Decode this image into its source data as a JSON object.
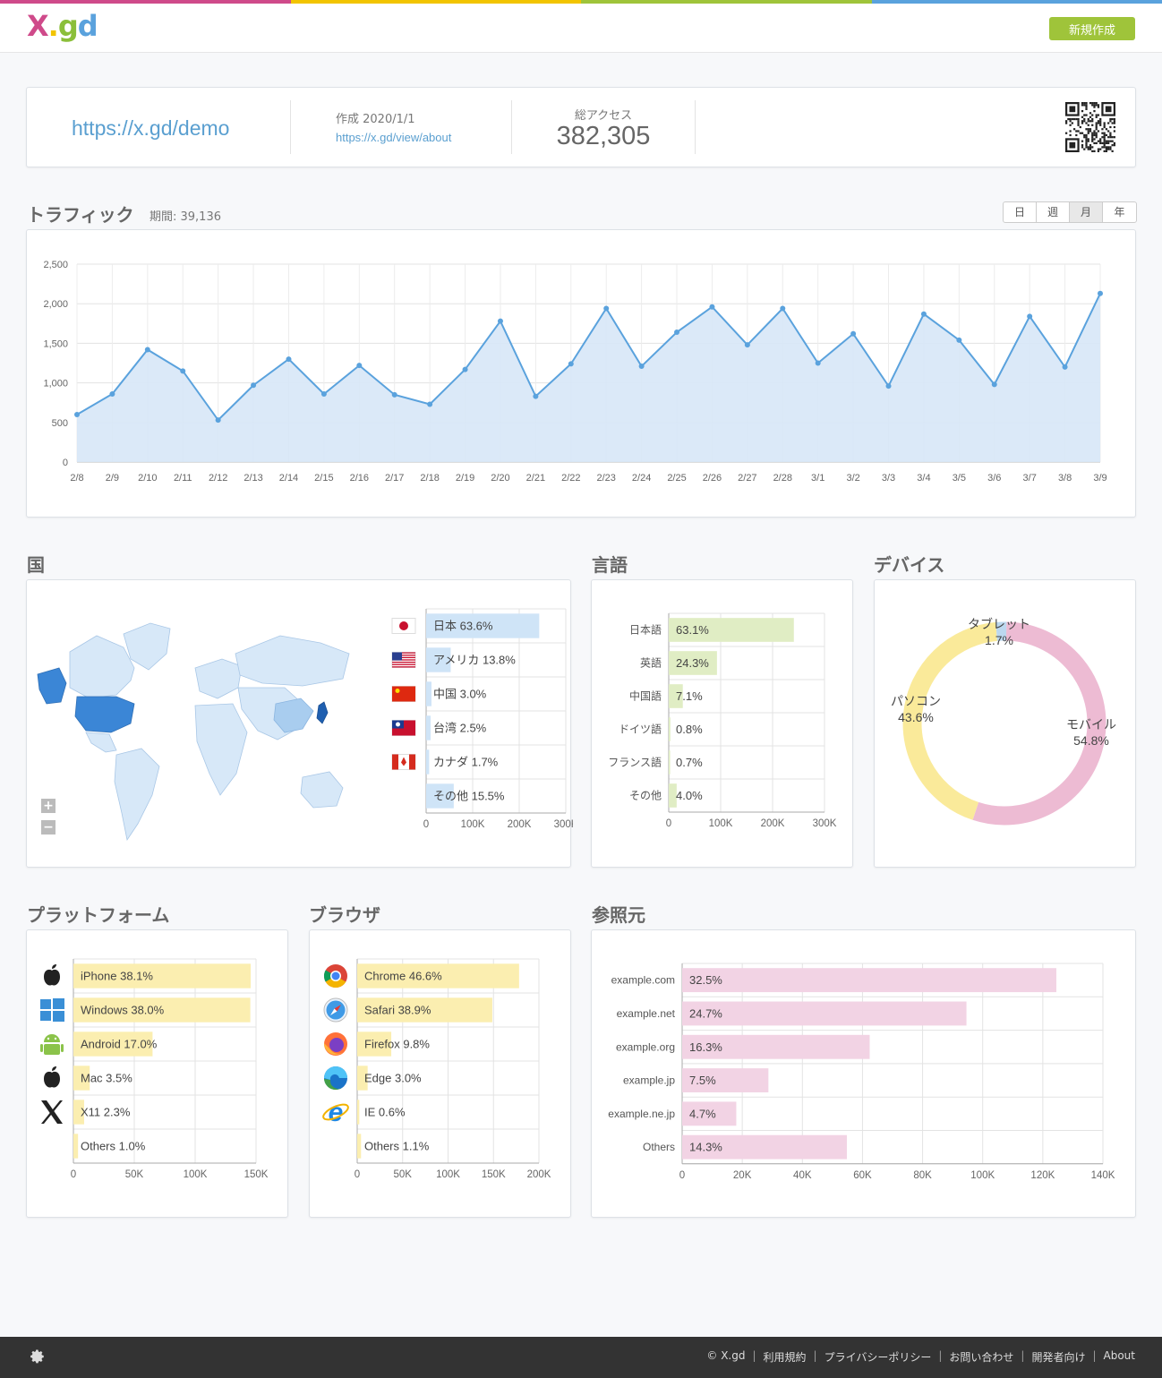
{
  "brand": {
    "logo_x": "X",
    "logo_dot": ".",
    "logo_g": "g",
    "logo_d": "d",
    "colors": [
      "#cf4a8a",
      "#f2c400",
      "#8bbf3a",
      "#5aa2dd"
    ]
  },
  "header": {
    "new_button": "新規作成"
  },
  "summary": {
    "short_url": "https://x.gd/demo",
    "created": "作成 2020/1/1",
    "view_link": "https://x.gd/view/about",
    "access_label": "総アクセス",
    "access_value": "382,305"
  },
  "traffic": {
    "title": "トラフィック",
    "period": "期間: 39,136",
    "tabs": [
      "日",
      "週",
      "月",
      "年"
    ],
    "active_tab": "月"
  },
  "sections": {
    "country": "国",
    "language": "言語",
    "device": "デバイス",
    "platform": "プラットフォーム",
    "browser": "ブラウザ",
    "referrer": "参照元"
  },
  "map": {
    "zoom_in": "+",
    "zoom_out": "−"
  },
  "chart_data": [
    {
      "id": "traffic",
      "type": "area",
      "title": "トラフィック",
      "x": [
        "2/8",
        "2/9",
        "2/10",
        "2/11",
        "2/12",
        "2/13",
        "2/14",
        "2/15",
        "2/16",
        "2/17",
        "2/18",
        "2/19",
        "2/20",
        "2/21",
        "2/22",
        "2/23",
        "2/24",
        "2/25",
        "2/26",
        "2/27",
        "2/28",
        "3/1",
        "3/2",
        "3/3",
        "3/4",
        "3/5",
        "3/6",
        "3/7",
        "3/8",
        "3/9"
      ],
      "values": [
        600,
        860,
        1420,
        1150,
        530,
        970,
        1300,
        860,
        1220,
        850,
        730,
        1170,
        1780,
        830,
        1240,
        1940,
        1210,
        1640,
        1960,
        1480,
        1940,
        1250,
        1620,
        960,
        1870,
        1540,
        980,
        1840,
        1200,
        2130
      ],
      "ylim": [
        0,
        2500
      ],
      "yticks": [
        "0",
        "500",
        "1,000",
        "1,500",
        "2,000",
        "2,500"
      ],
      "grid": true,
      "color": "#5aa2dd"
    },
    {
      "id": "country",
      "type": "bar",
      "title": "国",
      "categories": [
        "日本",
        "アメリカ",
        "中国",
        "台湾",
        "カナダ",
        "その他"
      ],
      "values": [
        243000,
        52800,
        11500,
        9600,
        6500,
        59300
      ],
      "labels": [
        "63.6%",
        "13.8%",
        "3.0%",
        "2.5%",
        "1.7%",
        "15.5%"
      ],
      "flags": [
        "jp",
        "us",
        "cn",
        "tw",
        "ca",
        ""
      ],
      "xlim": [
        0,
        300000
      ],
      "xticks": [
        "0",
        "100K",
        "200K",
        "300K"
      ],
      "color": "#cfe4f7"
    },
    {
      "id": "language",
      "type": "bar",
      "title": "言語",
      "categories": [
        "日本語",
        "英語",
        "中国語",
        "ドイツ語",
        "フランス語",
        "その他"
      ],
      "values": [
        241000,
        92900,
        27100,
        3100,
        2700,
        15300
      ],
      "labels": [
        "63.1%",
        "24.3%",
        "7.1%",
        "0.8%",
        "0.7%",
        "4.0%"
      ],
      "xlim": [
        0,
        300000
      ],
      "xticks": [
        "0",
        "100K",
        "200K",
        "300K"
      ],
      "color": "#e0edc4"
    },
    {
      "id": "device",
      "type": "pie",
      "title": "デバイス",
      "categories": [
        "モバイル",
        "パソコン",
        "タブレット"
      ],
      "values": [
        54.8,
        43.6,
        1.7
      ],
      "labels": [
        "54.8%",
        "43.6%",
        "1.7%"
      ],
      "colors": [
        "#edbbd3",
        "#faea9a",
        "#bcd8ef"
      ]
    },
    {
      "id": "platform",
      "type": "bar",
      "title": "プラットフォーム",
      "categories": [
        "iPhone",
        "Windows",
        "Android",
        "Mac",
        "X11",
        "Others"
      ],
      "values": [
        145600,
        145300,
        65000,
        13400,
        8800,
        3800
      ],
      "labels": [
        "38.1%",
        "38.0%",
        "17.0%",
        "3.5%",
        "2.3%",
        "1.0%"
      ],
      "icons": [
        "apple-icon",
        "windows-icon",
        "android-icon",
        "apple-icon",
        "x11-icon",
        ""
      ],
      "xlim": [
        0,
        150000
      ],
      "xticks": [
        "0",
        "50K",
        "100K",
        "150K"
      ],
      "color": "#fbeeb0"
    },
    {
      "id": "browser",
      "type": "bar",
      "title": "ブラウザ",
      "categories": [
        "Chrome",
        "Safari",
        "Firefox",
        "Edge",
        "IE",
        "Others"
      ],
      "values": [
        178200,
        148700,
        37500,
        11500,
        2300,
        4200
      ],
      "labels": [
        "46.6%",
        "38.9%",
        "9.8%",
        "3.0%",
        "0.6%",
        "1.1%"
      ],
      "icons": [
        "chrome-icon",
        "safari-icon",
        "firefox-icon",
        "edge-icon",
        "ie-icon",
        ""
      ],
      "xlim": [
        0,
        200000
      ],
      "xticks": [
        "0",
        "50K",
        "100K",
        "150K",
        "200K"
      ],
      "color": "#fbeeb0"
    },
    {
      "id": "referrer",
      "type": "bar",
      "title": "参照元",
      "categories": [
        "example.com",
        "example.net",
        "example.org",
        "example.jp",
        "example.ne.jp",
        "Others"
      ],
      "values": [
        124500,
        94600,
        62400,
        28700,
        18000,
        54800
      ],
      "labels": [
        "32.5%",
        "24.7%",
        "16.3%",
        "7.5%",
        "4.7%",
        "14.3%"
      ],
      "xlim": [
        0,
        140000
      ],
      "xticks": [
        "0",
        "20K",
        "40K",
        "60K",
        "80K",
        "100K",
        "120K",
        "140K"
      ],
      "color": "#f2d3e4"
    }
  ],
  "footer": {
    "links": [
      "© X.gd",
      "利用規約",
      "プライバシーポリシー",
      "お問い合わせ",
      "開発者向け",
      "About"
    ]
  }
}
